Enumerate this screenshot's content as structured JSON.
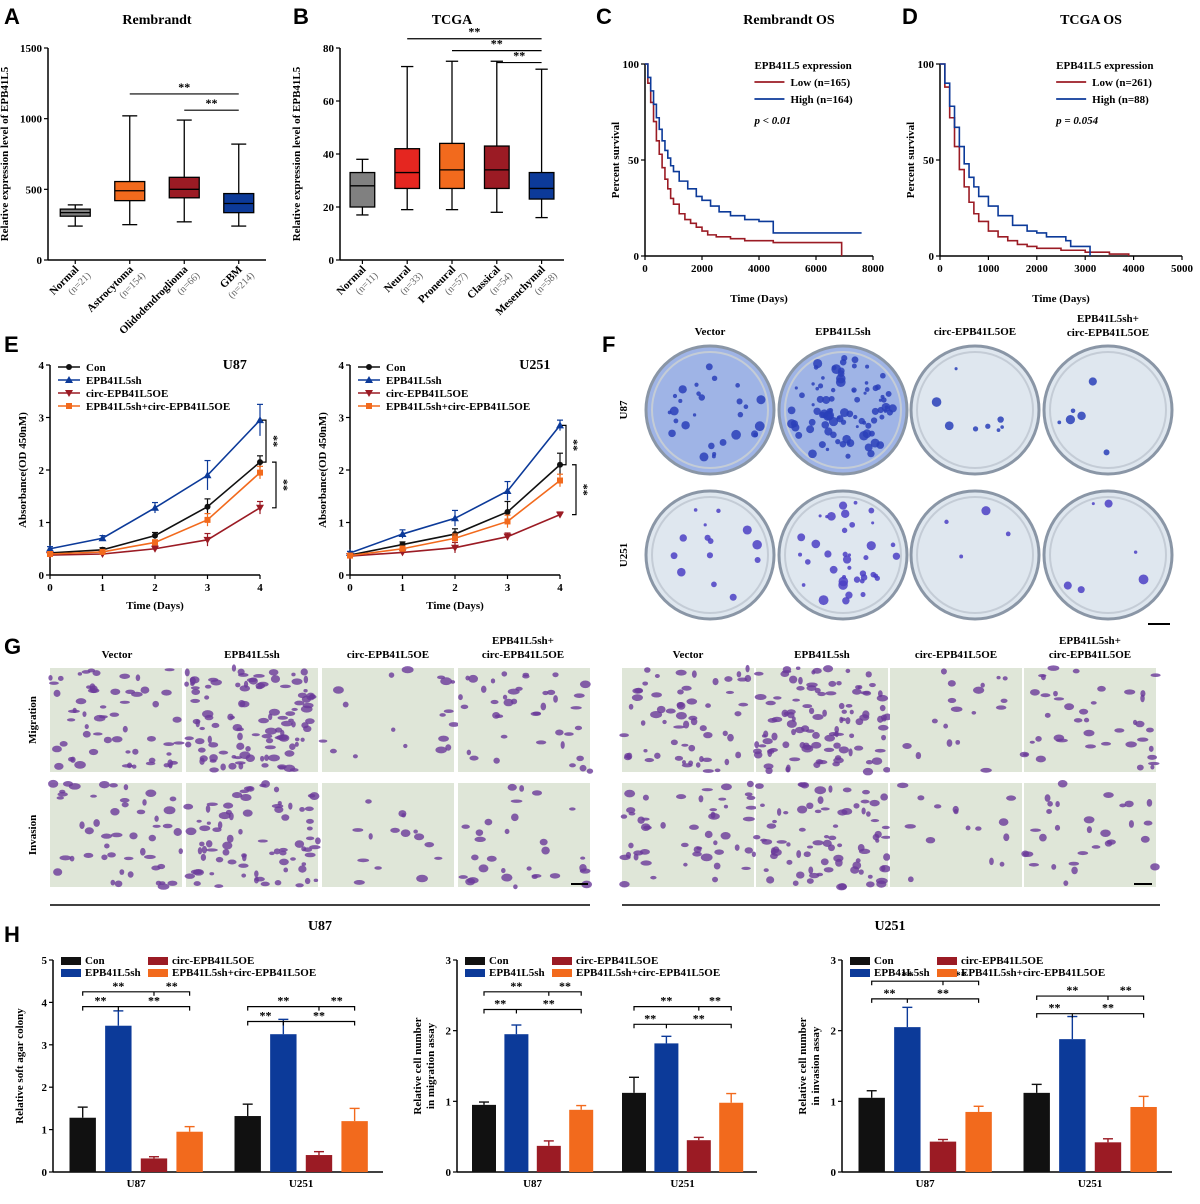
{
  "panels": {
    "A": "A",
    "B": "B",
    "C": "C",
    "D": "D",
    "E": "E",
    "F": "F",
    "G": "G",
    "H": "H"
  },
  "colors": {
    "black": "#111111",
    "blue": "#0c3a99",
    "red": "#9b1b24",
    "orange": "#f26a1d",
    "gray": "#808080",
    "brightred": "#e52620",
    "lightorange": "#f4763c"
  },
  "photo_panels": {
    "F": {
      "columns": [
        "Vector",
        "EPB41L5sh",
        "circ-EPB41L5OE",
        "EPB41L5sh+\ncirc-EPB41L5OE"
      ],
      "rows": [
        "U87",
        "U251"
      ]
    },
    "G": {
      "columns": [
        "Vector",
        "EPB41L5sh",
        "circ-EPB41L5OE",
        "EPB41L5sh+\ncirc-EPB41L5OE"
      ],
      "rows": [
        "Migration",
        "Invasion"
      ],
      "groups": [
        "U87",
        "U251"
      ]
    }
  },
  "chart_data": [
    {
      "id": "A",
      "type": "box",
      "title": "Rembrandt",
      "ylabel": "Relative expression level of EPB41L5",
      "ylim": [
        0,
        1500
      ],
      "yticks": [
        0,
        500,
        1000,
        1500
      ],
      "categories": [
        "Normal",
        "Astrocytoma",
        "Olidodendroglioma",
        "GBM"
      ],
      "n": [
        "(n=21)",
        "(n=154)",
        "(n=66)",
        "(n=214)"
      ],
      "boxes": [
        {
          "min": 240,
          "q1": 310,
          "median": 335,
          "q3": 360,
          "max": 390,
          "color": "#808080"
        },
        {
          "min": 250,
          "q1": 420,
          "median": 490,
          "q3": 555,
          "max": 1020,
          "color": "#f26a1d"
        },
        {
          "min": 270,
          "q1": 440,
          "median": 500,
          "q3": 585,
          "max": 990,
          "color": "#9b1b24"
        },
        {
          "min": 240,
          "q1": 335,
          "median": 400,
          "q3": 470,
          "max": 820,
          "color": "#0c3a99"
        }
      ],
      "significance": [
        {
          "from": 1,
          "to": 3,
          "label": "**",
          "y": 1175
        },
        {
          "from": 2,
          "to": 3,
          "label": "**",
          "y": 1060
        }
      ]
    },
    {
      "id": "B",
      "type": "box",
      "title": "TCGA",
      "ylabel": "Relative expression level of EPB41L5",
      "ylim": [
        0,
        80
      ],
      "yticks": [
        0,
        20,
        40,
        60,
        80
      ],
      "categories": [
        "Normal",
        "Neural",
        "Proneural",
        "Classical",
        "Mesenchymal"
      ],
      "n": [
        "(n=11)",
        "(n=33)",
        "(n=57)",
        "(n=54)",
        "(n=58)"
      ],
      "boxes": [
        {
          "min": 17,
          "q1": 20,
          "median": 28,
          "q3": 33,
          "max": 38,
          "color": "#808080"
        },
        {
          "min": 19,
          "q1": 27,
          "median": 33,
          "q3": 42,
          "max": 73,
          "color": "#e52620"
        },
        {
          "min": 19,
          "q1": 27,
          "median": 34,
          "q3": 44,
          "max": 75,
          "color": "#f26a1d"
        },
        {
          "min": 18,
          "q1": 27,
          "median": 34,
          "q3": 43,
          "max": 75,
          "color": "#9b1b24"
        },
        {
          "min": 16,
          "q1": 23,
          "median": 27,
          "q3": 33,
          "max": 72,
          "color": "#0c3a99"
        }
      ],
      "significance": [
        {
          "from": 1,
          "to": 4,
          "label": "**",
          "y": 83.5
        },
        {
          "from": 2,
          "to": 4,
          "label": "**",
          "y": 79
        },
        {
          "from": 3,
          "to": 4,
          "label": "**",
          "y": 74.5
        }
      ]
    },
    {
      "id": "C",
      "type": "line",
      "title": "Rembrandt OS",
      "ylabel": "Percent survival",
      "xlabel": "Time (Days)",
      "xlim": [
        0,
        8000
      ],
      "ylim": [
        0,
        100
      ],
      "xticks": [
        0,
        2000,
        4000,
        6000,
        8000
      ],
      "yticks": [
        0,
        50,
        100
      ],
      "legend_title": "EPB41L5 expression",
      "stat": "p < 0.01",
      "series": [
        {
          "name": "Low  (n=165)",
          "color": "#9b1b24",
          "x": [
            0,
            100,
            200,
            300,
            400,
            500,
            600,
            700,
            800,
            900,
            1000,
            1200,
            1400,
            1600,
            1800,
            2000,
            2200,
            2500,
            3000,
            3500,
            4000,
            4500,
            5000,
            5500,
            6000,
            6500,
            6900,
            6900
          ],
          "y": [
            100,
            90,
            80,
            70,
            60,
            53,
            46,
            40,
            35,
            30,
            27,
            22,
            19,
            17,
            15,
            13,
            11,
            10,
            9,
            8,
            8,
            7,
            7,
            7,
            7,
            7,
            7,
            0
          ]
        },
        {
          "name": "High (n=164)",
          "color": "#0c3a99",
          "x": [
            0,
            100,
            200,
            300,
            400,
            500,
            600,
            700,
            800,
            900,
            1000,
            1200,
            1500,
            1800,
            2000,
            2300,
            2600,
            3000,
            3500,
            4000,
            4500,
            4500,
            5000,
            6000,
            7000,
            7600
          ],
          "y": [
            100,
            93,
            86,
            79,
            72,
            66,
            60,
            55,
            51,
            47,
            44,
            39,
            35,
            31,
            29,
            26,
            23,
            21,
            19,
            18,
            18,
            12,
            12,
            12,
            12,
            12
          ]
        }
      ]
    },
    {
      "id": "D",
      "type": "line",
      "title": "TCGA OS",
      "ylabel": "Percent survival",
      "xlabel": "Time (Days)",
      "xlim": [
        0,
        5000
      ],
      "ylim": [
        0,
        100
      ],
      "xticks": [
        0,
        1000,
        2000,
        3000,
        4000,
        5000
      ],
      "yticks": [
        0,
        50,
        100
      ],
      "legend_title": "EPB41L5 expression",
      "stat": "p = 0.054",
      "series": [
        {
          "name": "Low  (n=261)",
          "color": "#9b1b24",
          "x": [
            0,
            100,
            200,
            300,
            400,
            500,
            600,
            700,
            800,
            1000,
            1200,
            1400,
            1600,
            1800,
            2000,
            2500,
            3000,
            3500,
            3900
          ],
          "y": [
            100,
            88,
            72,
            57,
            45,
            36,
            28,
            22,
            18,
            13,
            10,
            8,
            6,
            5,
            4,
            3,
            2,
            1,
            0
          ]
        },
        {
          "name": "High (n=88)",
          "color": "#0c3a99",
          "x": [
            0,
            100,
            200,
            300,
            400,
            500,
            600,
            700,
            800,
            1000,
            1200,
            1500,
            1800,
            2000,
            2200,
            2600,
            2700,
            3000,
            3100
          ],
          "y": [
            100,
            90,
            78,
            67,
            57,
            48,
            41,
            36,
            31,
            26,
            21,
            16,
            13,
            12,
            10,
            8,
            5,
            5,
            0
          ]
        }
      ]
    },
    {
      "id": "E1",
      "type": "line",
      "title": "U87",
      "ylabel": "Absorbance(OD 450nM)",
      "xlabel": "Time (Days)",
      "xlim": [
        0,
        4
      ],
      "ylim": [
        0,
        4
      ],
      "xticks": [
        0,
        1,
        2,
        3,
        4
      ],
      "yticks": [
        0,
        1,
        2,
        3,
        4
      ],
      "series": [
        {
          "name": "Con",
          "color": "#111111",
          "marker": "circle",
          "x": [
            0,
            1,
            2,
            3,
            4
          ],
          "y": [
            0.42,
            0.48,
            0.75,
            1.3,
            2.15
          ],
          "err": [
            0.03,
            0.04,
            0.06,
            0.15,
            0.12
          ]
        },
        {
          "name": "EPB41L5sh",
          "color": "#0c3a99",
          "marker": "triangle",
          "x": [
            0,
            1,
            2,
            3,
            4
          ],
          "y": [
            0.5,
            0.7,
            1.28,
            1.9,
            2.95
          ],
          "err": [
            0.04,
            0.05,
            0.1,
            0.28,
            0.3
          ]
        },
        {
          "name": "circ-EPB41L5OE",
          "color": "#9b1b24",
          "marker": "triangledown",
          "x": [
            0,
            1,
            2,
            3,
            4
          ],
          "y": [
            0.38,
            0.4,
            0.5,
            0.67,
            1.28
          ],
          "err": [
            0.03,
            0.05,
            0.05,
            0.12,
            0.12
          ]
        },
        {
          "name": "EPB41L5sh+circ-EPB41L5OE",
          "color": "#f26a1d",
          "marker": "square",
          "x": [
            0,
            1,
            2,
            3,
            4
          ],
          "y": [
            0.4,
            0.44,
            0.62,
            1.05,
            1.95
          ],
          "err": [
            0.03,
            0.04,
            0.05,
            0.12,
            0.12
          ]
        }
      ],
      "significance": [
        {
          "label": "**",
          "from": 2.95,
          "to": 2.15
        },
        {
          "label": "**",
          "from": 2.15,
          "to": 1.28
        }
      ]
    },
    {
      "id": "E2",
      "type": "line",
      "title": "U251",
      "ylabel": "Absorbance(OD 450nM)",
      "xlabel": "Time (Days)",
      "xlim": [
        0,
        4
      ],
      "ylim": [
        0,
        4
      ],
      "xticks": [
        0,
        1,
        2,
        3,
        4
      ],
      "yticks": [
        0,
        1,
        2,
        3,
        4
      ],
      "series": [
        {
          "name": "Con",
          "color": "#111111",
          "marker": "circle",
          "x": [
            0,
            1,
            2,
            3,
            4
          ],
          "y": [
            0.38,
            0.58,
            0.78,
            1.2,
            2.1
          ],
          "err": [
            0.03,
            0.05,
            0.1,
            0.2,
            0.22
          ]
        },
        {
          "name": "EPB41L5sh",
          "color": "#0c3a99",
          "marker": "triangle",
          "x": [
            0,
            1,
            2,
            3,
            4
          ],
          "y": [
            0.42,
            0.78,
            1.08,
            1.6,
            2.85
          ],
          "err": [
            0.03,
            0.08,
            0.15,
            0.18,
            0.1
          ]
        },
        {
          "name": "circ-EPB41L5OE",
          "color": "#9b1b24",
          "marker": "triangledown",
          "x": [
            0,
            1,
            2,
            3,
            4
          ],
          "y": [
            0.36,
            0.43,
            0.52,
            0.73,
            1.15
          ],
          "err": [
            0.03,
            0.05,
            0.1,
            0.07,
            0.05
          ]
        },
        {
          "name": "EPB41L5sh+circ-EPB41L5OE",
          "color": "#f26a1d",
          "marker": "square",
          "x": [
            0,
            1,
            2,
            3,
            4
          ],
          "y": [
            0.37,
            0.5,
            0.7,
            1.02,
            1.8
          ],
          "err": [
            0.03,
            0.05,
            0.08,
            0.12,
            0.12
          ]
        }
      ],
      "significance": [
        {
          "label": "**",
          "from": 2.85,
          "to": 2.1
        },
        {
          "label": "**",
          "from": 2.1,
          "to": 1.15
        }
      ]
    },
    {
      "id": "H1",
      "type": "bar",
      "ylabel": "Relative soft agar colony",
      "ylim": [
        0,
        5
      ],
      "yticks": [
        0,
        1,
        2,
        3,
        4,
        5
      ],
      "categories": [
        "U87",
        "U251"
      ],
      "series": [
        {
          "name": "Con",
          "color": "#111111",
          "values": [
            1.28,
            1.32
          ],
          "err": [
            0.25,
            0.28
          ]
        },
        {
          "name": "EPB41L5sh",
          "color": "#0c3a99",
          "values": [
            3.45,
            3.25
          ],
          "err": [
            0.35,
            0.35
          ]
        },
        {
          "name": "circ-EPB41L5OE",
          "color": "#9b1b24",
          "values": [
            0.32,
            0.4
          ],
          "err": [
            0.04,
            0.08
          ]
        },
        {
          "name": "EPB41L5sh+circ-EPB41L5OE",
          "color": "#f26a1d",
          "values": [
            0.95,
            1.2
          ],
          "err": [
            0.12,
            0.3
          ]
        }
      ],
      "significance": [
        {
          "y": 4.25,
          "a": 0,
          "b": 3,
          "mid": 1
        },
        {
          "y": 3.9,
          "a": 0,
          "b": 3,
          "mid": 1
        }
      ]
    },
    {
      "id": "H2",
      "type": "bar",
      "ylabel": "Relative cell number\nin migration assay",
      "ylim": [
        0,
        3
      ],
      "yticks": [
        0,
        1,
        2,
        3
      ],
      "categories": [
        "U87",
        "U251"
      ],
      "series": [
        {
          "name": "Con",
          "color": "#111111",
          "values": [
            0.95,
            1.12
          ],
          "err": [
            0.04,
            0.22
          ]
        },
        {
          "name": "EPB41L5sh",
          "color": "#0c3a99",
          "values": [
            1.95,
            1.82
          ],
          "err": [
            0.13,
            0.1
          ]
        },
        {
          "name": "circ-EPB41L5OE",
          "color": "#9b1b24",
          "values": [
            0.37,
            0.45
          ],
          "err": [
            0.07,
            0.04
          ]
        },
        {
          "name": "EPB41L5sh+circ-EPB41L5OE",
          "color": "#f26a1d",
          "values": [
            0.88,
            0.98
          ],
          "err": [
            0.06,
            0.13
          ]
        }
      ],
      "significance": [
        {
          "y": 2.55,
          "a": 0,
          "b": 3,
          "mid": 1
        },
        {
          "y": 2.3,
          "a": 0,
          "b": 3,
          "mid": 1
        }
      ]
    },
    {
      "id": "H3",
      "type": "bar",
      "ylabel": "Relative cell number\nin invasion assay",
      "ylim": [
        0,
        3
      ],
      "yticks": [
        0,
        1,
        2,
        3
      ],
      "categories": [
        "U87",
        "U251"
      ],
      "series": [
        {
          "name": "Con",
          "color": "#111111",
          "values": [
            1.05,
            1.12
          ],
          "err": [
            0.1,
            0.12
          ]
        },
        {
          "name": "EPB41L5sh",
          "color": "#0c3a99",
          "values": [
            2.05,
            1.88
          ],
          "err": [
            0.28,
            0.32
          ]
        },
        {
          "name": "circ-EPB41L5OE",
          "color": "#9b1b24",
          "values": [
            0.43,
            0.42
          ],
          "err": [
            0.03,
            0.05
          ]
        },
        {
          "name": "EPB41L5sh+circ-EPB41L5OE",
          "color": "#f26a1d",
          "values": [
            0.85,
            0.92
          ],
          "err": [
            0.08,
            0.15
          ]
        }
      ],
      "significance": [
        {
          "y": 2.7,
          "a": 0,
          "b": 3,
          "mid": 1
        },
        {
          "y": 2.45,
          "a": 0,
          "b": 3,
          "mid": 1
        }
      ]
    }
  ]
}
